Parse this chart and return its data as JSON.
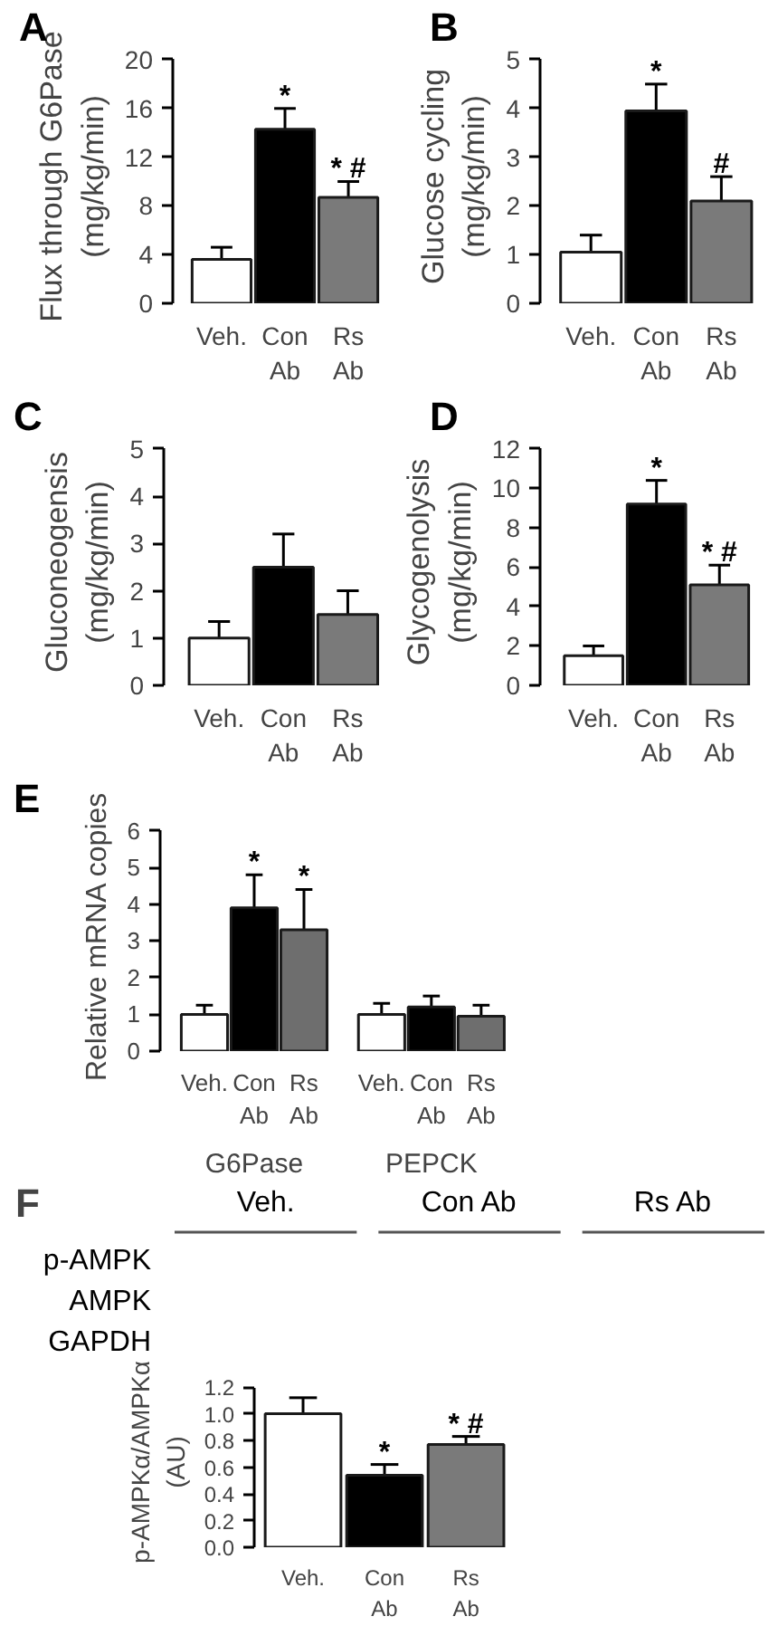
{
  "chart_data": [
    {
      "type": "bar",
      "title": "A",
      "ylabel": "Flux through G6Pase\n(mg/kg/min)",
      "categories": [
        "Veh.",
        "Con\nAb",
        "Rs\nAb"
      ],
      "values": [
        3.6,
        14.3,
        8.7
      ],
      "colors": [
        "#ffffff",
        "#000000",
        "#7a7a7a"
      ],
      "errors": [
        [
          3.6,
          4.6
        ],
        [
          14.3,
          16.0
        ],
        [
          8.7,
          10.0
        ]
      ],
      "value_labels": [
        null,
        "*",
        "* #"
      ],
      "ylim": [
        0,
        20
      ],
      "yticks": [
        0,
        4,
        8,
        12,
        16,
        20
      ]
    },
    {
      "type": "bar",
      "title": "B",
      "ylabel": "Glucose cycling\n(mg/kg/min)",
      "categories": [
        "Veh.",
        "Con\nAb",
        "Rs\nAb"
      ],
      "values": [
        1.05,
        3.95,
        2.1
      ],
      "colors": [
        "#ffffff",
        "#000000",
        "#7a7a7a"
      ],
      "errors": [
        [
          1.05,
          1.4
        ],
        [
          3.95,
          4.5
        ],
        [
          2.1,
          2.6
        ]
      ],
      "value_labels": [
        null,
        "*",
        "#"
      ],
      "ylim": [
        0,
        5
      ],
      "yticks": [
        0,
        1,
        2,
        3,
        4,
        5
      ]
    },
    {
      "type": "bar",
      "title": "C",
      "ylabel": "Gluconeogensis\n(mg/kg/min)",
      "categories": [
        "Veh.",
        "Con\nAb",
        "Rs\nAb"
      ],
      "values": [
        1.0,
        2.5,
        1.5
      ],
      "colors": [
        "#ffffff",
        "#000000",
        "#7a7a7a"
      ],
      "errors": [
        [
          1.0,
          1.35
        ],
        [
          2.5,
          3.2
        ],
        [
          1.5,
          2.0
        ]
      ],
      "ylim": [
        0,
        5
      ],
      "yticks": [
        0,
        1,
        2,
        3,
        4,
        5
      ]
    },
    {
      "type": "bar",
      "title": "D",
      "ylabel": "Glycogenolysis\n(mg/kg/min)",
      "categories": [
        "Veh.",
        "Con\nAb",
        "Rs\nAb"
      ],
      "values": [
        1.5,
        9.2,
        5.1
      ],
      "colors": [
        "#ffffff",
        "#000000",
        "#7a7a7a"
      ],
      "errors": [
        [
          1.5,
          2.0
        ],
        [
          9.2,
          10.4
        ],
        [
          5.1,
          6.1
        ]
      ],
      "value_labels": [
        null,
        "*",
        "* #"
      ],
      "ylim": [
        0,
        12
      ],
      "yticks": [
        0,
        2,
        4,
        6,
        8,
        10,
        12
      ]
    },
    {
      "type": "bar",
      "title": "E",
      "ylabel": "Relative mRNA copies",
      "categories": [
        "G6Pase",
        "PEPCK"
      ],
      "series": [
        {
          "name": "Veh.",
          "color": "#ffffff",
          "values": [
            1.0,
            1.0
          ],
          "errors": [
            [
              1.0,
              1.25
            ],
            [
              1.0,
              1.3
            ]
          ]
        },
        {
          "name": "Con\nAb",
          "color": "#000000",
          "values": [
            3.9,
            1.2
          ],
          "errors": [
            [
              3.9,
              4.8
            ],
            [
              1.2,
              1.5
            ]
          ],
          "value_labels": [
            "*",
            null
          ]
        },
        {
          "name": "Rs\nAb",
          "color": "#6e6e6e",
          "values": [
            3.3,
            0.95
          ],
          "errors": [
            [
              3.3,
              4.4
            ],
            [
              0.95,
              1.25
            ]
          ],
          "value_labels": [
            "*",
            null
          ]
        }
      ],
      "ylim": [
        0,
        6
      ],
      "yticks": [
        0,
        1,
        2,
        3,
        4,
        5,
        6
      ]
    },
    {
      "type": "other",
      "title": "F",
      "categories": [
        "Veh.",
        "Con Ab",
        "Rs Ab"
      ],
      "y_categories": [
        "p-AMPK",
        "AMPK",
        "GAPDH"
      ]
    },
    {
      "type": "bar",
      "ylabel": "p-AMPKα/AMPKα\n(AU)",
      "categories": [
        "Veh.",
        "Con\nAb",
        "Rs\nAb"
      ],
      "values": [
        1.0,
        0.54,
        0.77
      ],
      "colors": [
        "#ffffff",
        "#000000",
        "#7a7a7a"
      ],
      "errors": [
        [
          1.0,
          1.12
        ],
        [
          0.54,
          0.62
        ],
        [
          0.77,
          0.83
        ]
      ],
      "value_labels": [
        null,
        "*",
        "* #"
      ],
      "ylim": [
        0,
        1.2
      ],
      "yticks": [
        {
          "value": 0,
          "label": "0.0"
        },
        0.2,
        0.4,
        0.6,
        0.8,
        {
          "value": 1,
          "label": "1.0"
        },
        1.2
      ]
    }
  ]
}
